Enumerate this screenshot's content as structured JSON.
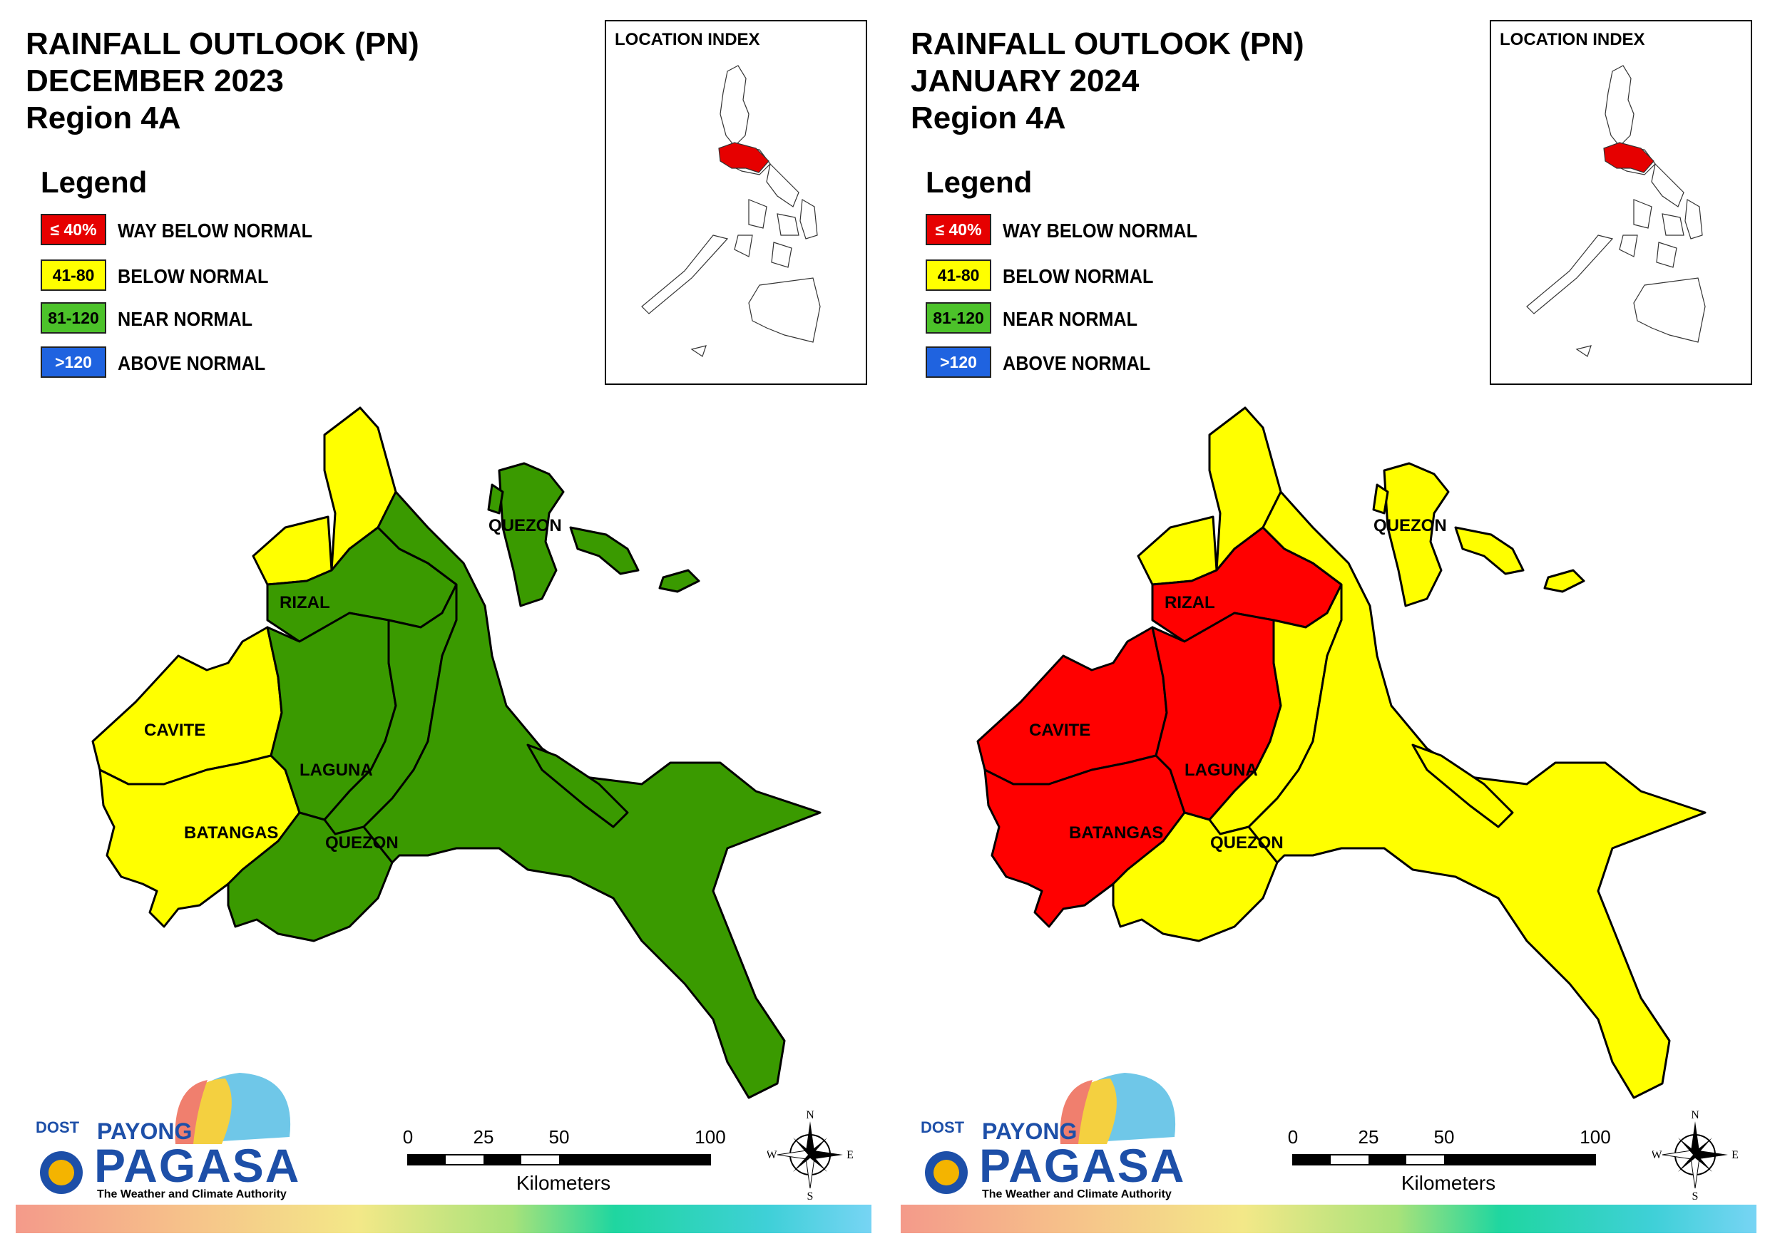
{
  "panels": [
    {
      "title_line1": "RAINFALL OUTLOOK (PN)",
      "title_line2": "DECEMBER 2023",
      "title_line3": "Region 4A",
      "province_colors": {
        "north": "#ffff00",
        "rizal": "#3a9a00",
        "cavite": "#ffff00",
        "batangas_west": "#ffff00",
        "laguna_west": "#3a9a00",
        "laguna_east": "#3a9a00",
        "batangas_east": "#3a9a00",
        "quezon": "#3a9a00",
        "islands": "#3a9a00"
      }
    },
    {
      "title_line1": "RAINFALL OUTLOOK (PN)",
      "title_line2": "JANUARY 2024",
      "title_line3": "Region 4A",
      "province_colors": {
        "north": "#ffff00",
        "rizal": "#ff0000",
        "cavite": "#ff0000",
        "batangas_west": "#ff0000",
        "laguna_west": "#ff0000",
        "laguna_east": "#ffff00",
        "batangas_east": "#ffff00",
        "quezon": "#ffff00",
        "islands": "#ffff00"
      }
    }
  ],
  "legend": {
    "title": "Legend",
    "items": [
      {
        "swatch": "≤ 40%",
        "label": "WAY BELOW NORMAL",
        "color": "#e60000",
        "text_color": "#ffffff"
      },
      {
        "swatch": "41-80",
        "label": "BELOW NORMAL",
        "color": "#ffff00",
        "text_color": "#000000"
      },
      {
        "swatch": "81-120",
        "label": "NEAR NORMAL",
        "color": "#4cc22a",
        "text_color": "#000000"
      },
      {
        "swatch": ">120",
        "label": "ABOVE NORMAL",
        "color": "#1f63e0",
        "text_color": "#ffffff"
      }
    ]
  },
  "location_index": {
    "title": "LOCATION INDEX",
    "highlight_color": "#e60000"
  },
  "province_labels": {
    "quezon_north": "QUEZON",
    "rizal": "RIZAL",
    "cavite": "CAVITE",
    "laguna": "LAGUNA",
    "batangas": "BATANGAS",
    "quezon_south": "QUEZON"
  },
  "logo": {
    "dost": "DOST",
    "payong": "PAYONG",
    "pagasa": "PAGASA",
    "tagline": "The Weather and Climate Authority"
  },
  "scale_bar": {
    "ticks": [
      "0",
      "25",
      "50",
      "100"
    ],
    "unit": "Kilometers"
  },
  "compass": {
    "n": "N",
    "s": "S",
    "e": "E",
    "w": "W"
  }
}
